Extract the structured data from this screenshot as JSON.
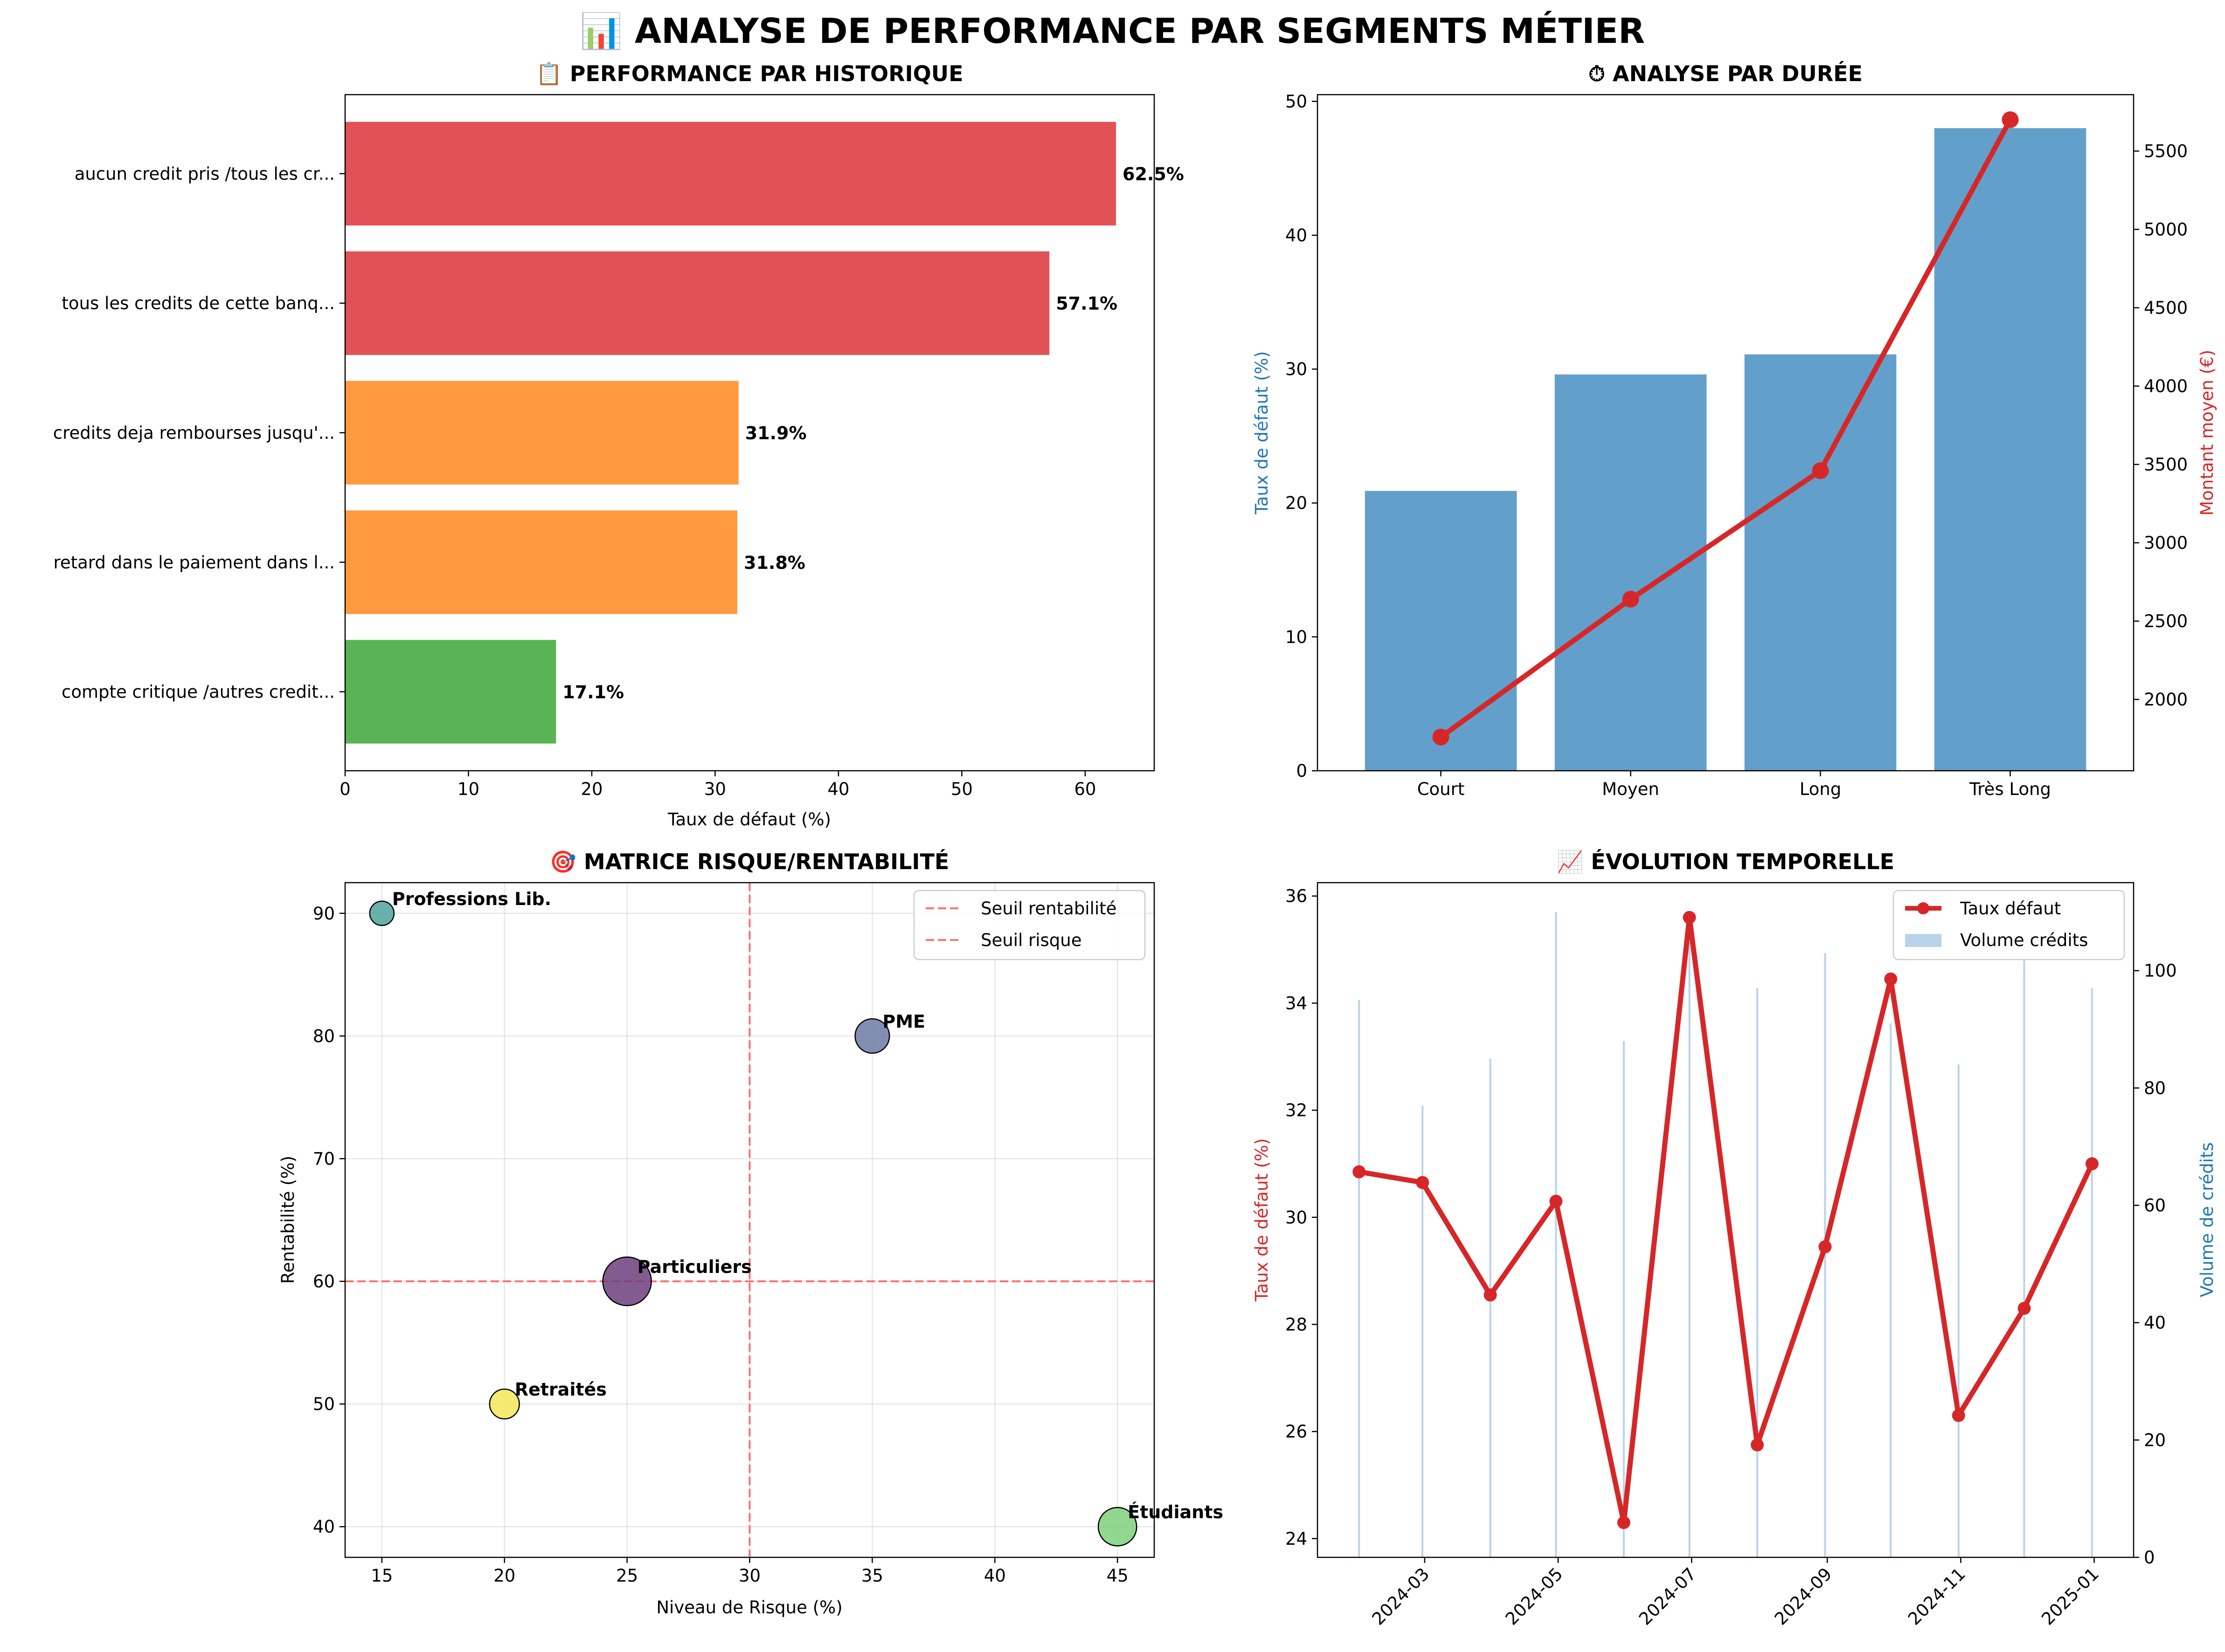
{
  "suptitle": "📊 ANALYSE DE PERFORMANCE PAR SEGMENTS MÉTIER",
  "chart_data": [
    {
      "type": "bar",
      "orientation": "horizontal",
      "title": "📋 PERFORMANCE PAR HISTORIQUE",
      "xlabel": "Taux de défaut (%)",
      "xlim": [
        0,
        65.6
      ],
      "xticks": [
        "0",
        "10",
        "20",
        "30",
        "40",
        "50",
        "60"
      ],
      "categories": [
        "aucun credit pris /tous les cr...",
        "tous les credits de cette banq...",
        "credits deja rembourses jusqu'...",
        "retard dans le paiement dans l...",
        "compte critique /autres credit..."
      ],
      "values": [
        62.5,
        57.1,
        31.9,
        31.8,
        17.1
      ],
      "value_labels": [
        "62.5%",
        "57.1%",
        "31.9%",
        "31.8%",
        "17.1%"
      ],
      "colors": [
        "#e05256",
        "#e05256",
        "#ff9a40",
        "#ff9a40",
        "#58b454"
      ]
    },
    {
      "type": "bar",
      "title": "⏱ ANALYSE PAR DURÉE",
      "ylabel": "Taux de défaut (%)",
      "ylabel_right": "Montant moyen (€)",
      "categories": [
        "Court",
        "Moyen",
        "Long",
        "Très Long"
      ],
      "ylim": [
        0,
        50.5
      ],
      "yticks": [
        "0",
        "10",
        "20",
        "30",
        "40",
        "50"
      ],
      "ylim_right": [
        1545,
        5860
      ],
      "yticks_right": [
        "2000",
        "2500",
        "3000",
        "3500",
        "4000",
        "4500",
        "5000",
        "5500"
      ],
      "series": [
        {
          "kind": "bar",
          "axis": "left",
          "color": "#62a0cb",
          "values": [
            20.9,
            29.6,
            31.1,
            48.0
          ]
        },
        {
          "kind": "line",
          "axis": "right",
          "color": "#d62728",
          "values": [
            1760,
            2640,
            3460,
            5700
          ]
        }
      ]
    },
    {
      "type": "scatter",
      "title": "🎯 MATRICE RISQUE/RENTABILITÉ",
      "xlabel": "Niveau de Risque (%)",
      "ylabel": "Rentabilité (%)",
      "xlim": [
        13.5,
        46.5
      ],
      "ylim": [
        37.5,
        92.5
      ],
      "xticks": [
        "15",
        "20",
        "25",
        "30",
        "35",
        "40",
        "45"
      ],
      "yticks": [
        "40",
        "50",
        "60",
        "70",
        "80",
        "90"
      ],
      "grid": true,
      "legend": "top-right",
      "reference_lines": [
        {
          "name": "Seuil rentabilité",
          "orientation": "horizontal",
          "value": 60,
          "color": "#ff6f6f"
        },
        {
          "name": "Seuil risque",
          "orientation": "vertical",
          "value": 30,
          "color": "#ff6f6f"
        }
      ],
      "points": [
        {
          "label": "Professions Lib.",
          "x": 15,
          "y": 90,
          "size": 1,
          "color": "#4fa49c"
        },
        {
          "label": "PME",
          "x": 35,
          "y": 80,
          "size": 2,
          "color": "#6c7ba4"
        },
        {
          "label": "Particuliers",
          "x": 25,
          "y": 60,
          "size": 4,
          "color": "#6c3f7e"
        },
        {
          "label": "Retraités",
          "x": 20,
          "y": 50,
          "size": 1.5,
          "color": "#f3e85a"
        },
        {
          "label": "Étudiants",
          "x": 45,
          "y": 40,
          "size": 2.5,
          "color": "#7fd07a"
        }
      ]
    },
    {
      "type": "line",
      "title": "📈 ÉVOLUTION TEMPORELLE",
      "ylabel": "Taux de défaut (%)",
      "ylabel_right": "Volume de crédits",
      "ylim": [
        23.65,
        36.25
      ],
      "yticks": [
        "24",
        "26",
        "28",
        "30",
        "32",
        "34",
        "36"
      ],
      "ylim_right": [
        0,
        115
      ],
      "yticks_right": [
        "0",
        "20",
        "40",
        "60",
        "80",
        "100"
      ],
      "xlim": [
        "2024-01-12",
        "2025-01-19"
      ],
      "xticks": [
        "2024-03",
        "2024-05",
        "2024-07",
        "2024-09",
        "2024-11",
        "2025-01"
      ],
      "legend": "top-right",
      "x": [
        "2024-01-31",
        "2024-02-29",
        "2024-03-31",
        "2024-04-30",
        "2024-05-31",
        "2024-06-30",
        "2024-07-31",
        "2024-08-31",
        "2024-09-30",
        "2024-10-31",
        "2024-11-30",
        "2024-12-31"
      ],
      "series": [
        {
          "name": "Taux défaut",
          "kind": "line",
          "axis": "left",
          "color": "#d62728",
          "values": [
            30.85,
            30.65,
            28.55,
            30.3,
            24.3,
            35.6,
            25.75,
            29.45,
            34.45,
            26.3,
            28.3,
            31.0
          ]
        },
        {
          "name": "Volume crédits",
          "kind": "bar",
          "axis": "right",
          "color": "#b8d3ea",
          "values": [
            95,
            77,
            85,
            110,
            88,
            105,
            97,
            103,
            91,
            84,
            102,
            97
          ]
        }
      ]
    }
  ]
}
